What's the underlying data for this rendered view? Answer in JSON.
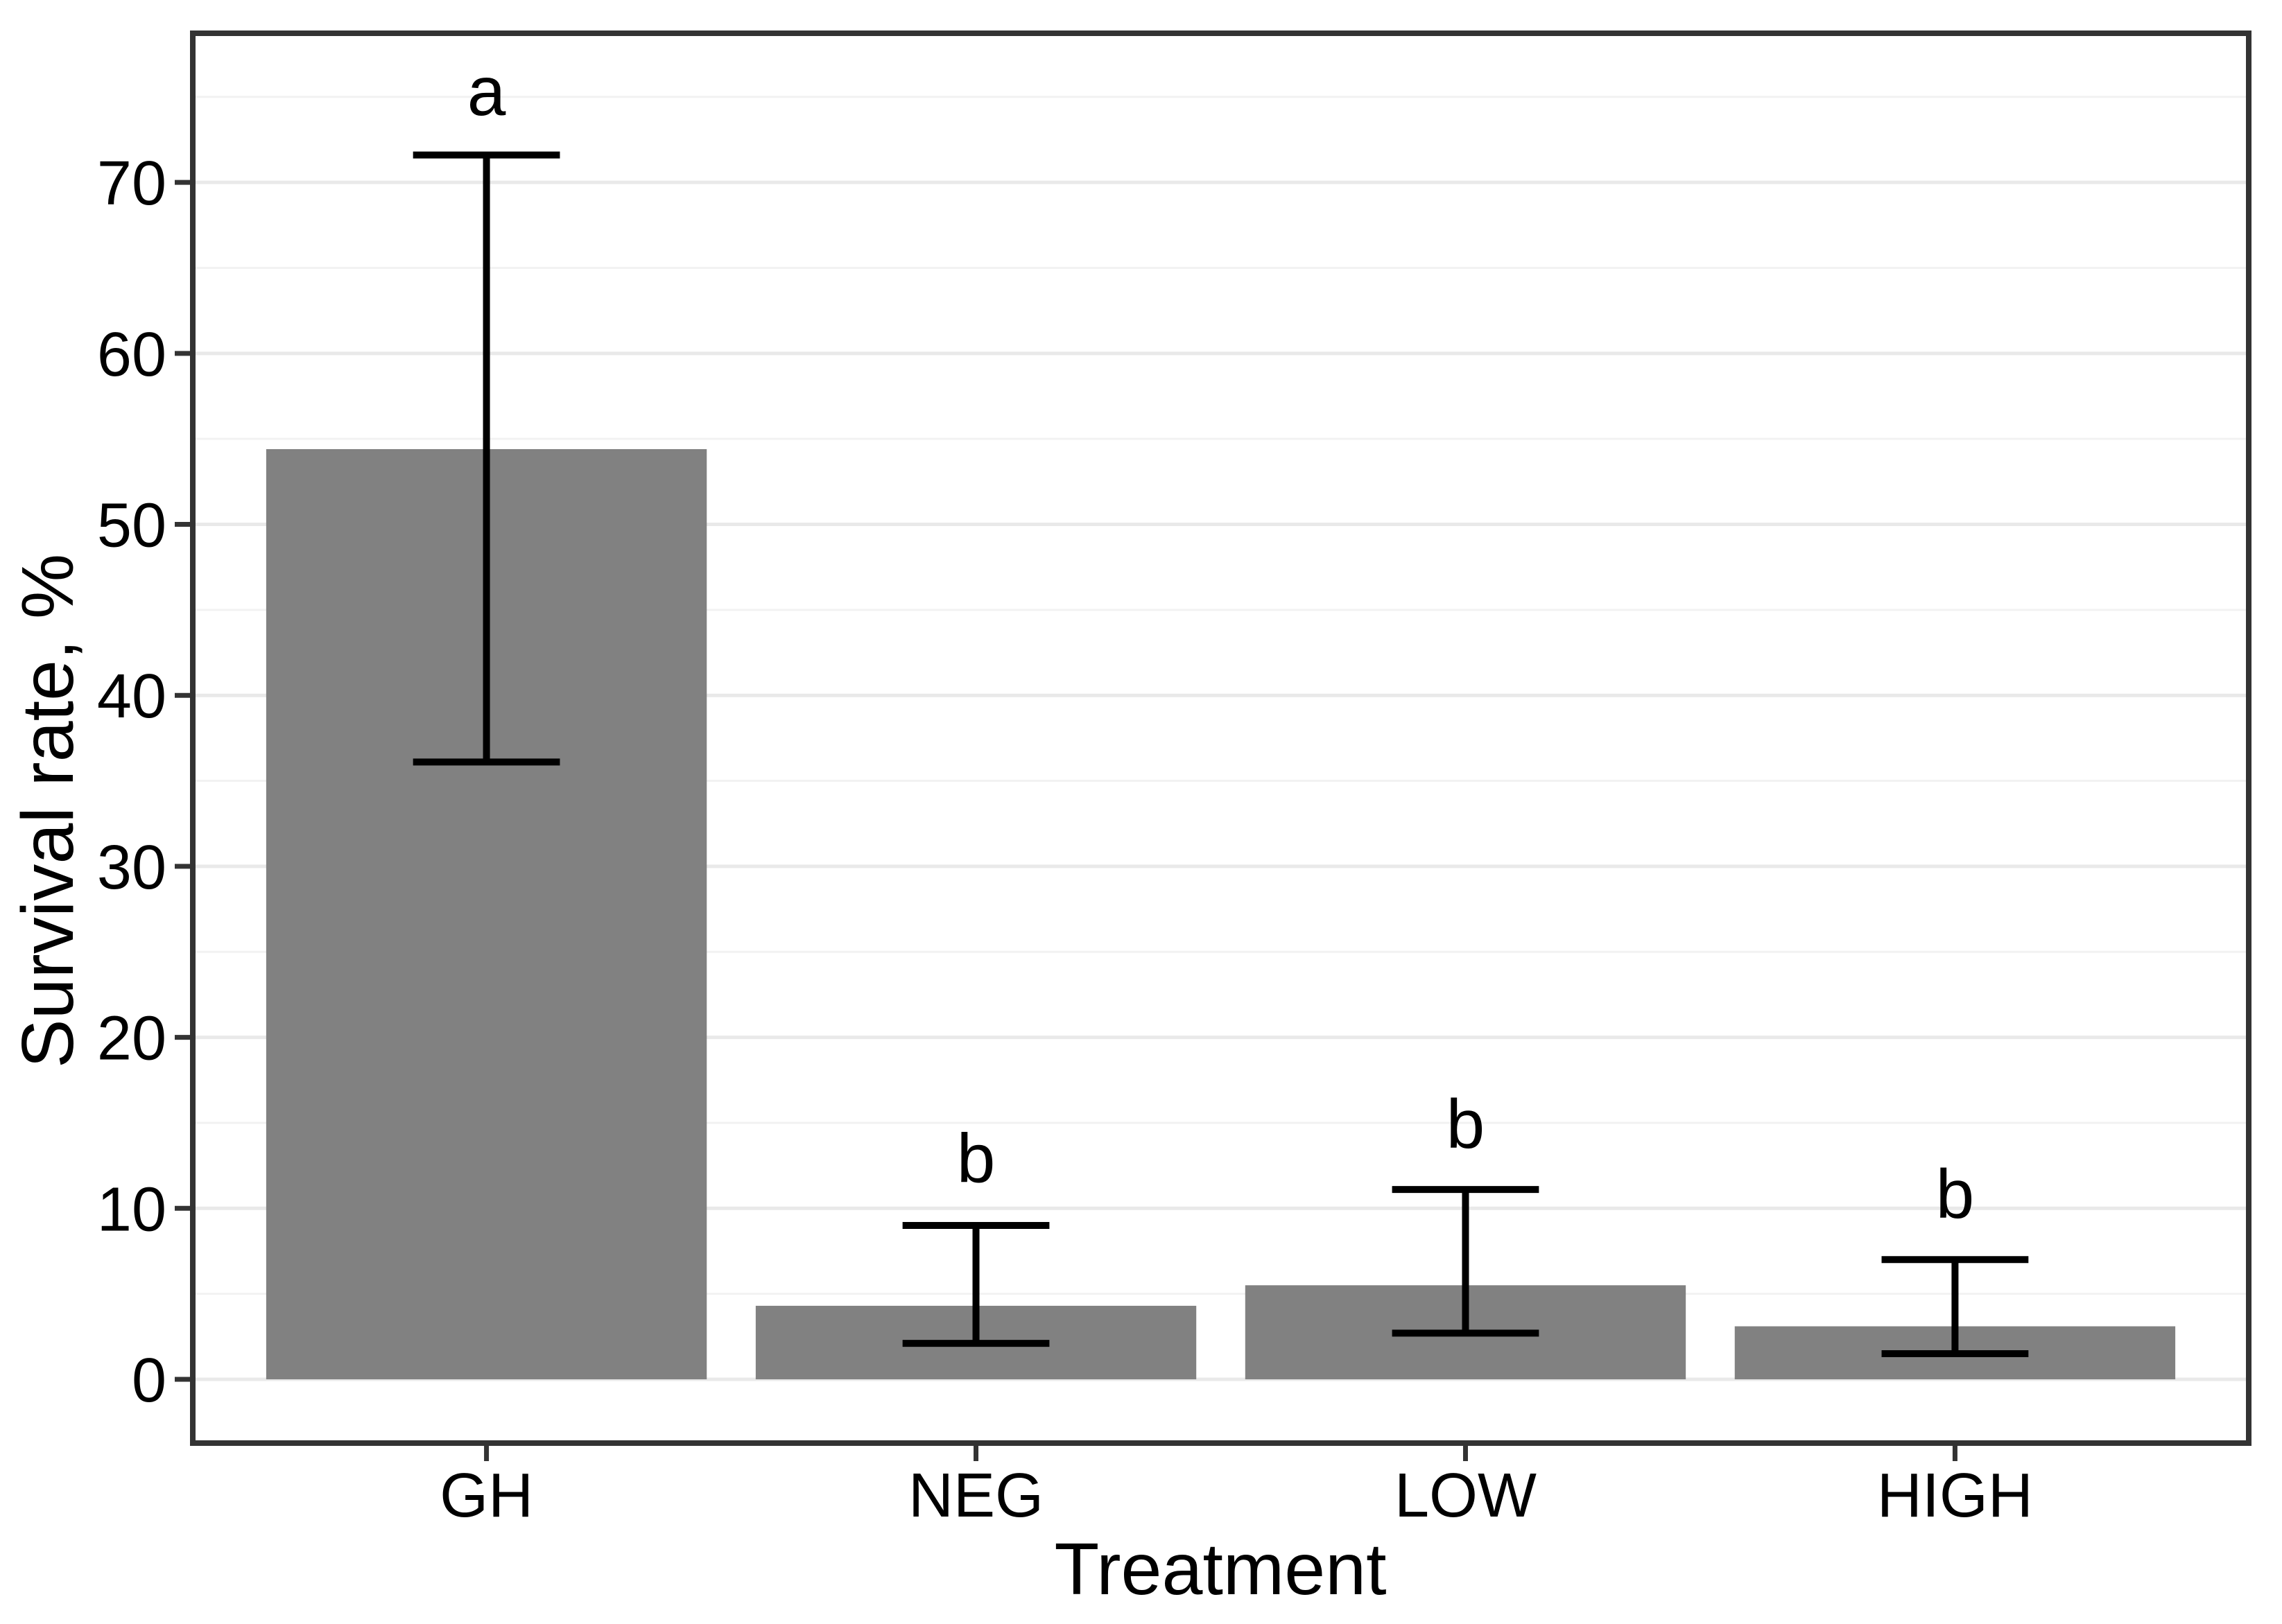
{
  "chart_data": {
    "type": "bar",
    "title": "",
    "xlabel": "Treatment",
    "ylabel": "Survival rate, %",
    "categories": [
      "GH",
      "NEG",
      "LOW",
      "HIGH"
    ],
    "values": [
      54.4,
      4.3,
      5.5,
      3.1
    ],
    "error_low": [
      36.1,
      2.1,
      2.7,
      1.5
    ],
    "error_high": [
      71.6,
      9.0,
      11.1,
      7.0
    ],
    "sig_letters": [
      "a",
      "b",
      "b",
      "b"
    ],
    "sig_letter_y": [
      75.4,
      13.0,
      15.0,
      10.9
    ],
    "y_ticks": [
      0,
      10,
      20,
      30,
      40,
      50,
      60,
      70
    ],
    "y_minor_ticks": [
      5,
      15,
      25,
      35,
      45,
      55,
      65,
      75
    ],
    "ylim": [
      -3.73,
      78.72
    ],
    "legend": "none",
    "grid": "on",
    "colors": {
      "bar_fill": "#818181",
      "error_bar": "#000000",
      "grid_major": "#e9e9e9",
      "grid_minor": "#f2f2f2",
      "panel_border": "#333333",
      "tick_mark": "#333333",
      "text": "#000000",
      "background": "#ffffff"
    }
  }
}
